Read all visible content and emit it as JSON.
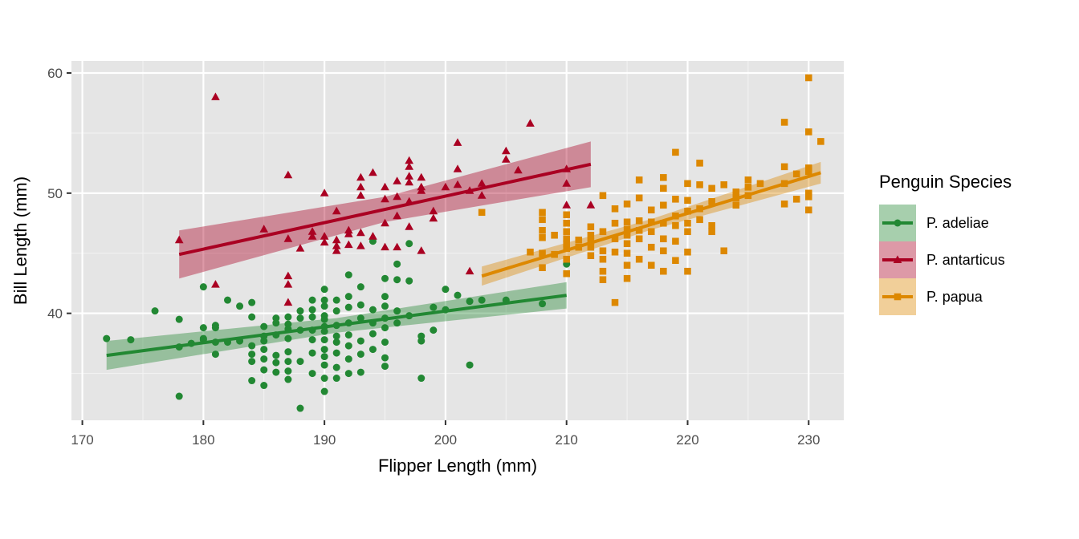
{
  "chart_data": {
    "type": "scatter",
    "xlabel": "Flipper Length (mm)",
    "ylabel": "Bill Length (mm)",
    "xlim": [
      169.1,
      232.9
    ],
    "ylim": [
      31.1,
      61.0
    ],
    "x_ticks": [
      170,
      180,
      190,
      200,
      210,
      220,
      230
    ],
    "y_ticks": [
      40,
      50,
      60
    ],
    "grid": true,
    "legend": {
      "title": "Penguin Species",
      "placement": "right"
    },
    "series": [
      {
        "name": "P. adeliae",
        "color": "#228833",
        "marker": "circle",
        "trend": {
          "x": [
            172,
            210
          ],
          "y": [
            36.5,
            41.5
          ],
          "ci_halfwidth": [
            1.2,
            1.1
          ]
        },
        "points": [
          [
            172,
            37.9
          ],
          [
            174,
            37.8
          ],
          [
            176,
            40.2
          ],
          [
            178,
            39.5
          ],
          [
            178,
            37.2
          ],
          [
            178,
            33.1
          ],
          [
            179,
            37.5
          ],
          [
            180,
            42.2
          ],
          [
            180,
            38.8
          ],
          [
            180,
            37.9
          ],
          [
            180,
            37.8
          ],
          [
            181,
            39.0
          ],
          [
            181,
            38.8
          ],
          [
            181,
            37.6
          ],
          [
            181,
            36.6
          ],
          [
            182,
            41.1
          ],
          [
            182,
            37.6
          ],
          [
            183,
            40.6
          ],
          [
            183,
            37.7
          ],
          [
            184,
            40.9
          ],
          [
            184,
            39.7
          ],
          [
            184,
            37.3
          ],
          [
            184,
            36.6
          ],
          [
            184,
            36.0
          ],
          [
            184,
            34.4
          ],
          [
            185,
            38.9
          ],
          [
            185,
            38.1
          ],
          [
            185,
            37.7
          ],
          [
            185,
            37.0
          ],
          [
            185,
            36.2
          ],
          [
            185,
            35.3
          ],
          [
            185,
            34.0
          ],
          [
            186,
            39.6
          ],
          [
            186,
            39.2
          ],
          [
            186,
            38.2
          ],
          [
            186,
            36.5
          ],
          [
            186,
            35.9
          ],
          [
            186,
            35.1
          ],
          [
            187,
            39.7
          ],
          [
            187,
            39.1
          ],
          [
            187,
            38.7
          ],
          [
            187,
            37.9
          ],
          [
            187,
            36.8
          ],
          [
            187,
            36.0
          ],
          [
            187,
            35.2
          ],
          [
            187,
            34.5
          ],
          [
            188,
            40.2
          ],
          [
            188,
            39.6
          ],
          [
            188,
            38.6
          ],
          [
            188,
            36.0
          ],
          [
            188,
            32.1
          ],
          [
            189,
            41.1
          ],
          [
            189,
            40.3
          ],
          [
            189,
            39.7
          ],
          [
            189,
            38.6
          ],
          [
            189,
            37.8
          ],
          [
            189,
            36.7
          ],
          [
            189,
            35.0
          ],
          [
            190,
            42.0
          ],
          [
            190,
            41.1
          ],
          [
            190,
            40.6
          ],
          [
            190,
            39.8
          ],
          [
            190,
            39.5
          ],
          [
            190,
            38.9
          ],
          [
            190,
            38.5
          ],
          [
            190,
            37.8
          ],
          [
            190,
            37.0
          ],
          [
            190,
            36.4
          ],
          [
            190,
            35.7
          ],
          [
            190,
            34.6
          ],
          [
            190,
            33.5
          ],
          [
            191,
            41.1
          ],
          [
            191,
            40.2
          ],
          [
            191,
            39.0
          ],
          [
            191,
            38.1
          ],
          [
            191,
            37.6
          ],
          [
            191,
            36.7
          ],
          [
            191,
            35.5
          ],
          [
            191,
            34.6
          ],
          [
            192,
            43.2
          ],
          [
            192,
            41.4
          ],
          [
            192,
            40.5
          ],
          [
            192,
            39.2
          ],
          [
            192,
            38.2
          ],
          [
            192,
            37.3
          ],
          [
            192,
            36.2
          ],
          [
            192,
            35.0
          ],
          [
            193,
            42.2
          ],
          [
            193,
            40.7
          ],
          [
            193,
            39.6
          ],
          [
            193,
            37.7
          ],
          [
            193,
            36.6
          ],
          [
            193,
            35.1
          ],
          [
            194,
            46.0
          ],
          [
            194,
            40.3
          ],
          [
            194,
            39.2
          ],
          [
            194,
            38.3
          ],
          [
            194,
            37.0
          ],
          [
            195,
            42.9
          ],
          [
            195,
            41.4
          ],
          [
            195,
            40.6
          ],
          [
            195,
            39.6
          ],
          [
            195,
            38.8
          ],
          [
            195,
            37.6
          ],
          [
            195,
            36.3
          ],
          [
            195,
            35.6
          ],
          [
            196,
            44.1
          ],
          [
            196,
            42.8
          ],
          [
            196,
            40.2
          ],
          [
            196,
            39.2
          ],
          [
            197,
            45.8
          ],
          [
            197,
            42.7
          ],
          [
            197,
            39.8
          ],
          [
            198,
            38.1
          ],
          [
            198,
            37.7
          ],
          [
            198,
            34.6
          ],
          [
            199,
            40.5
          ],
          [
            199,
            38.6
          ],
          [
            200,
            42.0
          ],
          [
            200,
            40.3
          ],
          [
            201,
            41.5
          ],
          [
            202,
            41.0
          ],
          [
            202,
            35.7
          ],
          [
            203,
            41.1
          ],
          [
            205,
            41.1
          ],
          [
            208,
            40.8
          ],
          [
            210,
            44.1
          ]
        ]
      },
      {
        "name": "P. antarticus",
        "color": "#AA0022",
        "marker": "triangle",
        "trend": {
          "x": [
            178,
            212
          ],
          "y": [
            44.9,
            52.4
          ],
          "ci_halfwidth": [
            2.0,
            1.9
          ]
        },
        "points": [
          [
            178,
            46.1
          ],
          [
            181,
            58.0
          ],
          [
            181,
            42.4
          ],
          [
            185,
            47.0
          ],
          [
            187,
            51.5
          ],
          [
            187,
            46.2
          ],
          [
            187,
            43.1
          ],
          [
            187,
            42.4
          ],
          [
            187,
            40.9
          ],
          [
            188,
            45.4
          ],
          [
            189,
            46.8
          ],
          [
            189,
            46.4
          ],
          [
            190,
            50.0
          ],
          [
            190,
            46.4
          ],
          [
            190,
            45.9
          ],
          [
            191,
            48.5
          ],
          [
            191,
            46.1
          ],
          [
            191,
            45.6
          ],
          [
            191,
            45.2
          ],
          [
            192,
            46.9
          ],
          [
            192,
            46.6
          ],
          [
            192,
            45.7
          ],
          [
            193,
            51.3
          ],
          [
            193,
            50.5
          ],
          [
            193,
            49.8
          ],
          [
            193,
            46.7
          ],
          [
            193,
            45.6
          ],
          [
            194,
            51.7
          ],
          [
            194,
            46.4
          ],
          [
            195,
            50.5
          ],
          [
            195,
            49.5
          ],
          [
            195,
            47.5
          ],
          [
            195,
            45.5
          ],
          [
            196,
            51.0
          ],
          [
            196,
            49.7
          ],
          [
            196,
            48.1
          ],
          [
            196,
            45.5
          ],
          [
            197,
            52.7
          ],
          [
            197,
            52.2
          ],
          [
            197,
            51.4
          ],
          [
            197,
            50.9
          ],
          [
            197,
            49.3
          ],
          [
            197,
            47.2
          ],
          [
            198,
            51.3
          ],
          [
            198,
            50.5
          ],
          [
            198,
            50.2
          ],
          [
            198,
            45.2
          ],
          [
            199,
            48.5
          ],
          [
            199,
            47.9
          ],
          [
            200,
            50.5
          ],
          [
            201,
            54.2
          ],
          [
            201,
            52.0
          ],
          [
            201,
            50.7
          ],
          [
            202,
            50.2
          ],
          [
            202,
            43.5
          ],
          [
            203,
            50.8
          ],
          [
            203,
            49.8
          ],
          [
            205,
            53.5
          ],
          [
            205,
            52.8
          ],
          [
            206,
            51.9
          ],
          [
            207,
            55.8
          ],
          [
            210,
            52.0
          ],
          [
            210,
            50.8
          ],
          [
            210,
            49.0
          ],
          [
            212,
            49.0
          ]
        ]
      },
      {
        "name": "P. papua",
        "color": "#DD8800",
        "marker": "square",
        "trend": {
          "x": [
            203,
            231
          ],
          "y": [
            43.1,
            51.7
          ],
          "ci_halfwidth": [
            0.8,
            0.9
          ]
        },
        "points": [
          [
            203,
            48.4
          ],
          [
            207,
            45.1
          ],
          [
            208,
            48.4
          ],
          [
            208,
            47.8
          ],
          [
            208,
            46.9
          ],
          [
            208,
            46.3
          ],
          [
            208,
            45.0
          ],
          [
            208,
            43.8
          ],
          [
            209,
            46.5
          ],
          [
            209,
            44.9
          ],
          [
            210,
            48.2
          ],
          [
            210,
            47.5
          ],
          [
            210,
            46.8
          ],
          [
            210,
            46.2
          ],
          [
            210,
            45.8
          ],
          [
            210,
            45.4
          ],
          [
            210,
            44.5
          ],
          [
            210,
            43.3
          ],
          [
            211,
            46.1
          ],
          [
            211,
            45.5
          ],
          [
            212,
            47.2
          ],
          [
            212,
            46.5
          ],
          [
            212,
            46.0
          ],
          [
            212,
            45.5
          ],
          [
            212,
            44.8
          ],
          [
            213,
            49.8
          ],
          [
            213,
            46.8
          ],
          [
            213,
            45.2
          ],
          [
            213,
            44.5
          ],
          [
            213,
            43.5
          ],
          [
            213,
            42.8
          ],
          [
            214,
            48.7
          ],
          [
            214,
            47.5
          ],
          [
            214,
            46.2
          ],
          [
            214,
            45.1
          ],
          [
            214,
            40.9
          ],
          [
            215,
            49.1
          ],
          [
            215,
            47.6
          ],
          [
            215,
            47.0
          ],
          [
            215,
            46.5
          ],
          [
            215,
            45.8
          ],
          [
            215,
            45.0
          ],
          [
            215,
            44.0
          ],
          [
            215,
            42.9
          ],
          [
            216,
            51.1
          ],
          [
            216,
            49.6
          ],
          [
            216,
            47.7
          ],
          [
            216,
            46.9
          ],
          [
            216,
            46.2
          ],
          [
            216,
            44.5
          ],
          [
            217,
            48.6
          ],
          [
            217,
            47.6
          ],
          [
            217,
            46.8
          ],
          [
            217,
            45.5
          ],
          [
            217,
            44.0
          ],
          [
            218,
            51.3
          ],
          [
            218,
            50.4
          ],
          [
            218,
            49.0
          ],
          [
            218,
            47.5
          ],
          [
            218,
            46.2
          ],
          [
            218,
            45.2
          ],
          [
            218,
            43.5
          ],
          [
            219,
            53.4
          ],
          [
            219,
            49.5
          ],
          [
            219,
            48.1
          ],
          [
            219,
            47.3
          ],
          [
            219,
            46.0
          ],
          [
            219,
            44.4
          ],
          [
            220,
            50.8
          ],
          [
            220,
            49.4
          ],
          [
            220,
            48.5
          ],
          [
            220,
            47.5
          ],
          [
            220,
            46.8
          ],
          [
            220,
            45.1
          ],
          [
            220,
            43.5
          ],
          [
            221,
            52.5
          ],
          [
            221,
            50.7
          ],
          [
            221,
            48.7
          ],
          [
            221,
            47.8
          ],
          [
            222,
            50.4
          ],
          [
            222,
            49.3
          ],
          [
            222,
            47.3
          ],
          [
            222,
            46.8
          ],
          [
            223,
            50.7
          ],
          [
            223,
            45.2
          ],
          [
            224,
            50.1
          ],
          [
            224,
            49.6
          ],
          [
            224,
            49.0
          ],
          [
            225,
            51.1
          ],
          [
            225,
            50.5
          ],
          [
            225,
            49.8
          ],
          [
            226,
            50.8
          ],
          [
            228,
            55.9
          ],
          [
            228,
            52.2
          ],
          [
            228,
            50.8
          ],
          [
            228,
            49.1
          ],
          [
            229,
            51.6
          ],
          [
            229,
            49.5
          ],
          [
            230,
            59.6
          ],
          [
            230,
            55.1
          ],
          [
            230,
            52.1
          ],
          [
            230,
            51.8
          ],
          [
            230,
            50.0
          ],
          [
            230,
            49.7
          ],
          [
            230,
            48.6
          ],
          [
            231,
            54.3
          ]
        ]
      }
    ]
  },
  "colors": {
    "panel_background": "#E5E5E5",
    "grid_major": "#FFFFFF",
    "tick_text": "#4D4D4D"
  }
}
